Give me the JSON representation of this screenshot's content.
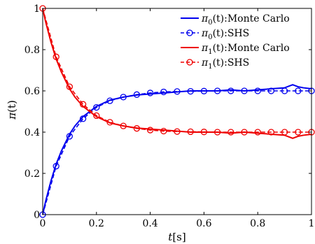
{
  "chart_data": {
    "type": "line",
    "title": "",
    "xlabel_main": "t",
    "xlabel_unit": "[s]",
    "ylabel_main": "π",
    "ylabel_arg": "(t)",
    "xlim": [
      0,
      1
    ],
    "ylim": [
      0,
      1
    ],
    "xticks": [
      "0",
      "0.2",
      "0.4",
      "0.6",
      "0.8",
      "1"
    ],
    "yticks": [
      "0",
      "0.2",
      "0.4",
      "0.6",
      "0.8",
      "1"
    ],
    "grid": false,
    "legend_position": "top-right",
    "colors": {
      "blue": "#0000ee",
      "red": "#ee0000"
    },
    "series": [
      {
        "name": "π0(t):Monte Carlo",
        "legend_sym": "π",
        "legend_sub": "0",
        "legend_rest": "(t):Monte Carlo",
        "color": "#0000ee",
        "style": "solid",
        "marker": "none",
        "x": [
          0,
          0.01,
          0.02,
          0.03,
          0.05,
          0.07,
          0.1,
          0.12,
          0.15,
          0.18,
          0.2,
          0.25,
          0.3,
          0.35,
          0.4,
          0.45,
          0.5,
          0.55,
          0.6,
          0.65,
          0.7,
          0.75,
          0.8,
          0.85,
          0.9,
          0.93,
          0.95,
          0.97,
          1.0
        ],
        "y": [
          0,
          0.06,
          0.11,
          0.16,
          0.245,
          0.31,
          0.39,
          0.43,
          0.475,
          0.505,
          0.525,
          0.555,
          0.57,
          0.58,
          0.585,
          0.59,
          0.595,
          0.6,
          0.6,
          0.6,
          0.605,
          0.6,
          0.605,
          0.61,
          0.615,
          0.63,
          0.62,
          0.615,
          0.61
        ]
      },
      {
        "name": "π0(t):SHS",
        "legend_sym": "π",
        "legend_sub": "0",
        "legend_rest": "(t):SHS",
        "color": "#0000ee",
        "style": "dashed",
        "marker": "circle",
        "x": [
          0,
          0.05,
          0.1,
          0.15,
          0.2,
          0.25,
          0.3,
          0.35,
          0.4,
          0.45,
          0.5,
          0.55,
          0.6,
          0.65,
          0.7,
          0.75,
          0.8,
          0.85,
          0.9,
          0.95,
          1.0
        ],
        "y": [
          0,
          0.235,
          0.38,
          0.465,
          0.52,
          0.552,
          0.57,
          0.582,
          0.59,
          0.595,
          0.597,
          0.598,
          0.599,
          0.6,
          0.6,
          0.6,
          0.6,
          0.6,
          0.6,
          0.6,
          0.6
        ]
      },
      {
        "name": "π1(t):Monte Carlo",
        "legend_sym": "π",
        "legend_sub": "1",
        "legend_rest": "(t):Monte Carlo",
        "color": "#ee0000",
        "style": "solid",
        "marker": "none",
        "x": [
          0,
          0.01,
          0.02,
          0.03,
          0.05,
          0.07,
          0.1,
          0.12,
          0.15,
          0.18,
          0.2,
          0.25,
          0.3,
          0.35,
          0.4,
          0.45,
          0.5,
          0.55,
          0.6,
          0.65,
          0.7,
          0.75,
          0.8,
          0.85,
          0.9,
          0.93,
          0.95,
          0.97,
          1.0
        ],
        "y": [
          1,
          0.94,
          0.89,
          0.84,
          0.755,
          0.69,
          0.61,
          0.57,
          0.525,
          0.495,
          0.475,
          0.445,
          0.43,
          0.42,
          0.415,
          0.41,
          0.405,
          0.4,
          0.4,
          0.4,
          0.395,
          0.4,
          0.395,
          0.39,
          0.385,
          0.37,
          0.38,
          0.385,
          0.39
        ]
      },
      {
        "name": "π1(t):SHS",
        "legend_sym": "π",
        "legend_sub": "1",
        "legend_rest": "(t):SHS",
        "color": "#ee0000",
        "style": "dashed",
        "marker": "circle",
        "x": [
          0,
          0.05,
          0.1,
          0.15,
          0.2,
          0.25,
          0.3,
          0.35,
          0.4,
          0.45,
          0.5,
          0.55,
          0.6,
          0.65,
          0.7,
          0.75,
          0.8,
          0.85,
          0.9,
          0.95,
          1.0
        ],
        "y": [
          1,
          0.765,
          0.62,
          0.535,
          0.48,
          0.448,
          0.43,
          0.418,
          0.41,
          0.405,
          0.403,
          0.402,
          0.401,
          0.4,
          0.4,
          0.4,
          0.4,
          0.4,
          0.4,
          0.4,
          0.4
        ]
      }
    ]
  }
}
